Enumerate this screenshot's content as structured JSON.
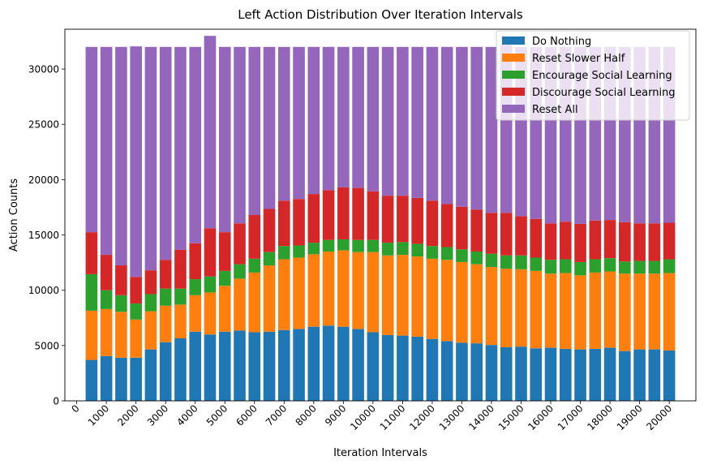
{
  "chart_data": {
    "type": "bar",
    "stacked": true,
    "title": "Left Action Distribution Over Iteration Intervals",
    "xlabel": "Iteration Intervals",
    "ylabel": "Action Counts",
    "x": [
      500,
      1000,
      1500,
      2000,
      2500,
      3000,
      3500,
      4000,
      4500,
      5000,
      5500,
      6000,
      6500,
      7000,
      7500,
      8000,
      8500,
      9000,
      9500,
      10000,
      10500,
      11000,
      11500,
      12000,
      12500,
      13000,
      13500,
      14000,
      14500,
      15000,
      15500,
      16000,
      16500,
      17000,
      17500,
      18000,
      18500,
      19000,
      19500,
      20000
    ],
    "xticks": [
      "0",
      "1000",
      "2000",
      "3000",
      "4000",
      "5000",
      "6000",
      "7000",
      "8000",
      "9000",
      "10000",
      "11000",
      "12000",
      "13000",
      "14000",
      "15000",
      "16000",
      "17000",
      "18000",
      "19000",
      "20000"
    ],
    "xlim": [
      -400,
      20900
    ],
    "yticks": [
      "0",
      "5000",
      "10000",
      "15000",
      "20000",
      "25000",
      "30000"
    ],
    "ylim": [
      0,
      33600
    ],
    "legend": "top-right",
    "series": [
      {
        "name": "Do Nothing",
        "color": "#1f77b4",
        "values": [
          3700,
          4050,
          3900,
          3900,
          4650,
          5300,
          5650,
          6250,
          6000,
          6250,
          6350,
          6200,
          6250,
          6400,
          6500,
          6700,
          6800,
          6700,
          6500,
          6200,
          5950,
          5900,
          5800,
          5600,
          5400,
          5250,
          5200,
          5050,
          4850,
          4900,
          4750,
          4800,
          4700,
          4650,
          4700,
          4800,
          4500,
          4650,
          4650,
          4550
        ]
      },
      {
        "name": "Reset Slower Half",
        "color": "#ff7f0e",
        "values": [
          4450,
          4250,
          4150,
          3450,
          3450,
          3300,
          3050,
          3300,
          3800,
          4150,
          4700,
          5400,
          6000,
          6400,
          6450,
          6550,
          6700,
          6900,
          6950,
          7250,
          7200,
          7300,
          7250,
          7250,
          7350,
          7300,
          7150,
          7050,
          7100,
          7000,
          7000,
          6700,
          6850,
          6700,
          6900,
          6900,
          7000,
          6850,
          6850,
          7000
        ]
      },
      {
        "name": "Encourage Social Learning",
        "color": "#2ca02c",
        "values": [
          3300,
          1700,
          1500,
          1450,
          1550,
          1550,
          1450,
          1450,
          1450,
          1350,
          1300,
          1250,
          1200,
          1200,
          1100,
          1050,
          1050,
          1000,
          1100,
          1100,
          1150,
          1150,
          1150,
          1150,
          1150,
          1150,
          1150,
          1200,
          1200,
          1250,
          1200,
          1250,
          1250,
          1200,
          1200,
          1200,
          1100,
          1150,
          1150,
          1250
        ]
      },
      {
        "name": "Discourage Social Learning",
        "color": "#d62728",
        "values": [
          3800,
          3200,
          2700,
          2400,
          2150,
          2600,
          3500,
          3250,
          4350,
          3500,
          3700,
          3950,
          3900,
          4100,
          4200,
          4400,
          4500,
          4700,
          4700,
          4400,
          4250,
          4200,
          4150,
          4100,
          3900,
          3850,
          3800,
          3700,
          3850,
          3550,
          3500,
          3300,
          3400,
          3450,
          3500,
          3450,
          3550,
          3400,
          3400,
          3300
        ]
      },
      {
        "name": "Reset All",
        "color": "#9467bd",
        "values": [
          16750,
          18800,
          19750,
          20850,
          20200,
          19250,
          18350,
          17750,
          17400,
          16750,
          15950,
          15200,
          14650,
          13900,
          13750,
          13300,
          12950,
          12700,
          12750,
          13050,
          13450,
          13450,
          13650,
          13900,
          14200,
          14450,
          14700,
          15000,
          15200,
          15300,
          15550,
          15950,
          15800,
          16000,
          15700,
          15650,
          15850,
          15950,
          15950,
          15900
        ]
      }
    ]
  }
}
